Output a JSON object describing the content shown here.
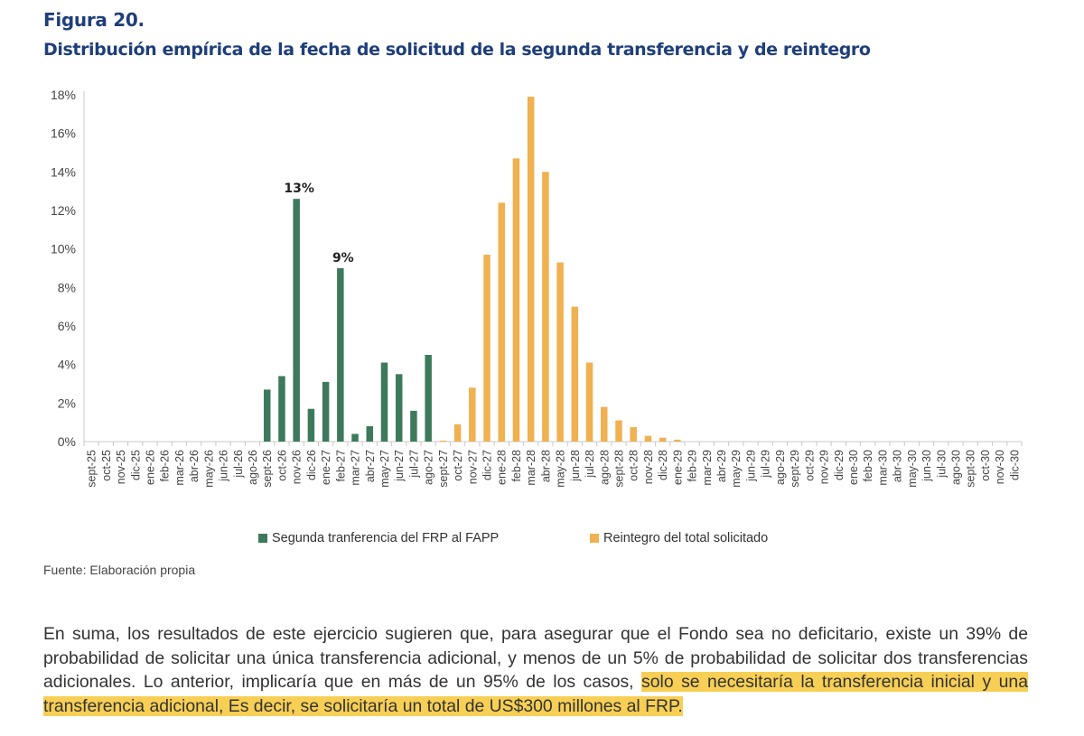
{
  "figure": {
    "label": "Figura 20.",
    "title": "Distribución empírica de la fecha de solicitud de la segunda transferencia y de reintegro"
  },
  "chart_data": {
    "type": "bar",
    "categories": [
      "sept-25",
      "oct-25",
      "nov-25",
      "dic-25",
      "ene-26",
      "feb-26",
      "mar-26",
      "abr-26",
      "may-26",
      "jun-26",
      "jul-26",
      "ago-26",
      "sept-26",
      "oct-26",
      "nov-26",
      "dic-26",
      "ene-27",
      "feb-27",
      "mar-27",
      "abr-27",
      "may-27",
      "jun-27",
      "jul-27",
      "ago-27",
      "sept-27",
      "oct-27",
      "nov-27",
      "dic-27",
      "ene-28",
      "feb-28",
      "mar-28",
      "abr-28",
      "may-28",
      "jun-28",
      "jul-28",
      "ago-28",
      "sept-28",
      "oct-28",
      "nov-28",
      "dic-28",
      "ene-29",
      "feb-29",
      "mar-29",
      "abr-29",
      "may-29",
      "jun-29",
      "jul-29",
      "ago-29",
      "sept-29",
      "oct-29",
      "nov-29",
      "dic-29",
      "ene-30",
      "feb-30",
      "mar-30",
      "abr-30",
      "may-30",
      "jun-30",
      "jul-30",
      "ago-30",
      "sept-30",
      "oct-30",
      "nov-30",
      "dic-30"
    ],
    "series": [
      {
        "name": "Segunda tranferencia del FRP al FAPP",
        "color": "#3d7a5c",
        "values": [
          0,
          0,
          0,
          0,
          0,
          0,
          0,
          0,
          0,
          0,
          0,
          0,
          2.7,
          3.4,
          12.6,
          1.7,
          3.1,
          9.0,
          0.4,
          0.8,
          4.1,
          3.5,
          1.6,
          4.5,
          0,
          0,
          0,
          0,
          0,
          0,
          0,
          0,
          0,
          0,
          0,
          0,
          0,
          0,
          0,
          0,
          0,
          0,
          0,
          0,
          0,
          0,
          0,
          0,
          0,
          0,
          0,
          0,
          0,
          0,
          0,
          0,
          0,
          0,
          0,
          0,
          0,
          0,
          0,
          0
        ]
      },
      {
        "name": "Reintegro del total solicitado",
        "color": "#f0b150",
        "values": [
          0,
          0,
          0,
          0,
          0,
          0,
          0,
          0,
          0,
          0,
          0,
          0,
          0,
          0,
          0,
          0,
          0,
          0,
          0,
          0,
          0,
          0,
          0,
          0,
          0.05,
          0.9,
          2.8,
          9.7,
          12.4,
          14.7,
          17.9,
          14.0,
          9.3,
          7.0,
          4.1,
          1.8,
          1.1,
          0.75,
          0.3,
          0.2,
          0.1,
          0,
          0,
          0,
          0,
          0,
          0,
          0,
          0,
          0,
          0,
          0,
          0,
          0,
          0,
          0,
          0,
          0,
          0,
          0,
          0,
          0,
          0,
          0
        ]
      }
    ],
    "annotations": [
      {
        "category": "nov-26",
        "series": 0,
        "text": "13%"
      },
      {
        "category": "feb-27",
        "series": 0,
        "text": "9%"
      }
    ],
    "yticks": [
      "0%",
      "2%",
      "4%",
      "6%",
      "8%",
      "10%",
      "12%",
      "14%",
      "16%",
      "18%"
    ],
    "ylim": [
      0,
      18
    ],
    "title": "",
    "xlabel": "",
    "ylabel": "",
    "legend_position": "bottom"
  },
  "source": "Fuente: Elaboración propia",
  "paragraph": {
    "plain": "En suma, los resultados de este ejercicio sugieren que, para asegurar que el Fondo sea no deficitario, existe un 39% de probabilidad de solicitar una única transferencia adicional, y menos de un 5% de probabilidad de solicitar dos transferencias adicionales. Lo anterior, implicaría que en más de un 95% de los casos, ",
    "highlight": "solo se necesitaría la transferencia inicial y una transferencia adicional, Es decir, se solicitaría un total de US$300 millones al FRP.",
    "highlight_color": "#f7cf55"
  }
}
